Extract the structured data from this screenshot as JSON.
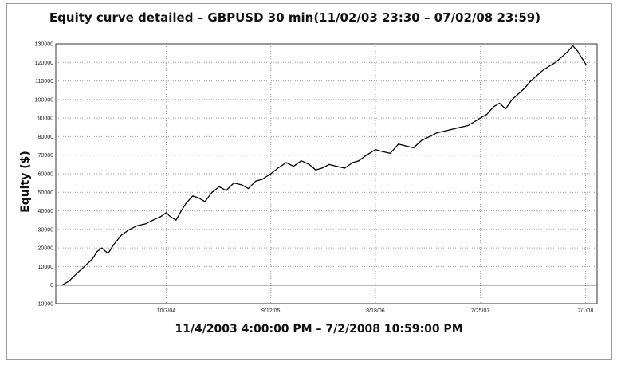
{
  "chart_data": {
    "type": "line",
    "title": "Equity curve detailed – GBPUSD 30 min(11/02/03 23:30 – 07/02/08 23:59)",
    "xlabel": "11/4/2003 4:00:00 PM – 7/2/2008 10:59:00 PM",
    "ylabel": "Equity ($)",
    "ylim": [
      -10000,
      130000
    ],
    "ytick_values": [
      -10000,
      0,
      10000,
      20000,
      30000,
      40000,
      50000,
      60000,
      70000,
      80000,
      90000,
      100000,
      110000,
      120000,
      130000
    ],
    "ytick_labels": [
      "-10000",
      "0",
      "10000",
      "20000",
      "30000",
      "40000",
      "50000",
      "60000",
      "70000",
      "80000",
      "90000",
      "100000",
      "110000",
      "120000",
      "130000"
    ],
    "xlim": [
      "2003-11-04",
      "2008-07-02"
    ],
    "xtick_values": [
      "2004-10-07",
      "2005-09-12",
      "2006-08-18",
      "2007-07-25",
      "2008-07-01"
    ],
    "xtick_labels": [
      "10/7/04",
      "9/12/05",
      "8/18/06",
      "7/25/07",
      "7/1/08"
    ],
    "grid": true,
    "series": [
      {
        "color": "#000000",
        "x": [
          "2003-11-04",
          "2003-11-25",
          "2003-12-20",
          "2004-01-15",
          "2004-02-10",
          "2004-02-25",
          "2004-03-12",
          "2004-04-01",
          "2004-04-20",
          "2004-05-15",
          "2004-06-10",
          "2004-07-05",
          "2004-08-01",
          "2004-08-25",
          "2004-09-20",
          "2004-10-07",
          "2004-10-20",
          "2004-11-08",
          "2004-11-25",
          "2004-12-10",
          "2005-01-01",
          "2005-01-20",
          "2005-02-10",
          "2005-03-05",
          "2005-03-28",
          "2005-04-20",
          "2005-05-15",
          "2005-06-10",
          "2005-07-01",
          "2005-07-25",
          "2005-08-15",
          "2005-09-12",
          "2005-10-05",
          "2005-11-01",
          "2005-11-25",
          "2005-12-20",
          "2006-01-15",
          "2006-02-05",
          "2006-02-25",
          "2006-03-20",
          "2006-04-15",
          "2006-05-10",
          "2006-06-05",
          "2006-06-25",
          "2006-07-20",
          "2006-08-18",
          "2006-09-10",
          "2006-10-05",
          "2006-11-01",
          "2006-11-25",
          "2006-12-20",
          "2007-01-15",
          "2007-02-10",
          "2007-03-05",
          "2007-04-01",
          "2007-04-25",
          "2007-05-20",
          "2007-06-15",
          "2007-07-05",
          "2007-07-25",
          "2007-08-15",
          "2007-09-05",
          "2007-09-25",
          "2007-10-15",
          "2007-11-05",
          "2007-11-25",
          "2007-12-15",
          "2008-01-05",
          "2008-01-25",
          "2008-02-15",
          "2008-03-05",
          "2008-03-25",
          "2008-04-15",
          "2008-05-05",
          "2008-05-20",
          "2008-06-05",
          "2008-06-20",
          "2008-07-02"
        ],
        "values": [
          0,
          2000,
          6000,
          10000,
          14000,
          18000,
          20000,
          17000,
          22000,
          27000,
          30000,
          32000,
          33000,
          35000,
          37000,
          39000,
          37000,
          35000,
          40000,
          44000,
          48000,
          47000,
          45000,
          50000,
          53000,
          51000,
          55000,
          54000,
          52000,
          56000,
          57000,
          60000,
          63000,
          66000,
          64000,
          67000,
          65000,
          62000,
          63000,
          65000,
          64000,
          63000,
          66000,
          67000,
          70000,
          73000,
          72000,
          71000,
          76000,
          75000,
          74000,
          78000,
          80000,
          82000,
          83000,
          84000,
          85000,
          86000,
          88000,
          90000,
          92000,
          96000,
          98000,
          95000,
          100000,
          103000,
          106000,
          110000,
          113000,
          116000,
          118000,
          120000,
          123000,
          126000,
          129000,
          126000,
          122000,
          119000
        ]
      }
    ]
  }
}
